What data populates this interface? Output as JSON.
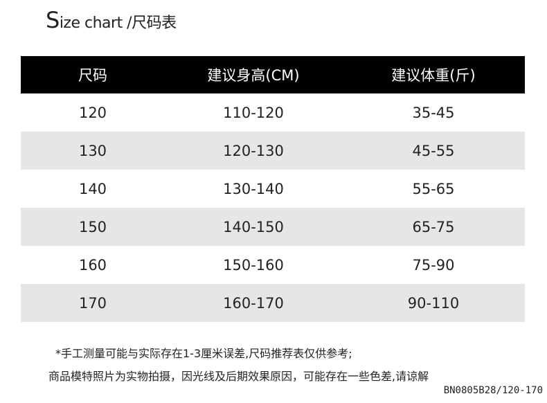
{
  "title": {
    "first_letter": "S",
    "rest": "ize chart /尺码表"
  },
  "table": {
    "headers": [
      "尺码",
      "建议身高(CM)",
      "建议体重(斤)"
    ],
    "rows": [
      [
        "120",
        "110-120",
        "35-45"
      ],
      [
        "130",
        "120-130",
        "45-55"
      ],
      [
        "140",
        "130-140",
        "55-65"
      ],
      [
        "150",
        "140-150",
        "65-75"
      ],
      [
        "160",
        "150-160",
        "75-90"
      ],
      [
        "170",
        "160-170",
        "90-110"
      ]
    ]
  },
  "notes": [
    "*手工测量可能与实际存在1-3厘米误差,尺码推荐表仅供参考;",
    "商品模特照片为实物拍摄，因光线及后期效果原因，可能存在一些色差,请谅解"
  ],
  "product_code": "BN0805B28/120-170"
}
